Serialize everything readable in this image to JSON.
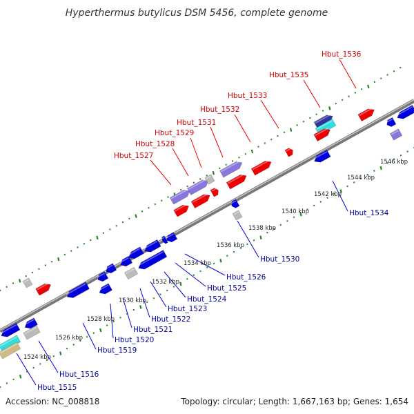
{
  "title": "Hyperthermus butylicus DSM 5456, complete genome",
  "footer": {
    "accession": "Accession: NC_008818",
    "summary": "Topology: circular; Length: 1,667,163 bp; Genes: 1,654"
  },
  "colors": {
    "forward_gene": "#ee0000",
    "reverse_gene": "#0000dd",
    "rna_gene": "#8877dd",
    "other_gene": "#bbbbbb",
    "backbone": "#888888",
    "tick": "#228822",
    "forward_label": "#cc0000",
    "reverse_label": "#000099"
  },
  "scale_labels": [
    "1524 kbp",
    "1526 kbp",
    "1528 kbp",
    "1530 kbp",
    "1532 kbp",
    "1534 kbp",
    "1536 kbp",
    "1538 kbp",
    "1540 kbp",
    "1542 kbp",
    "1544 kbp",
    "1546 kbp"
  ],
  "forward_labels": [
    "Hbut_1527",
    "Hbut_1528",
    "Hbut_1529",
    "Hbut_1531",
    "Hbut_1532",
    "Hbut_1533",
    "Hbut_1535",
    "Hbut_1536"
  ],
  "reverse_labels": [
    "Hbut_1515",
    "Hbut_1516",
    "Hbut_1519",
    "Hbut_1520",
    "Hbut_1521",
    "Hbut_1522",
    "Hbut_1523",
    "Hbut_1524",
    "Hbut_1525",
    "Hbut_1526",
    "Hbut_1530",
    "Hbut_1534"
  ]
}
